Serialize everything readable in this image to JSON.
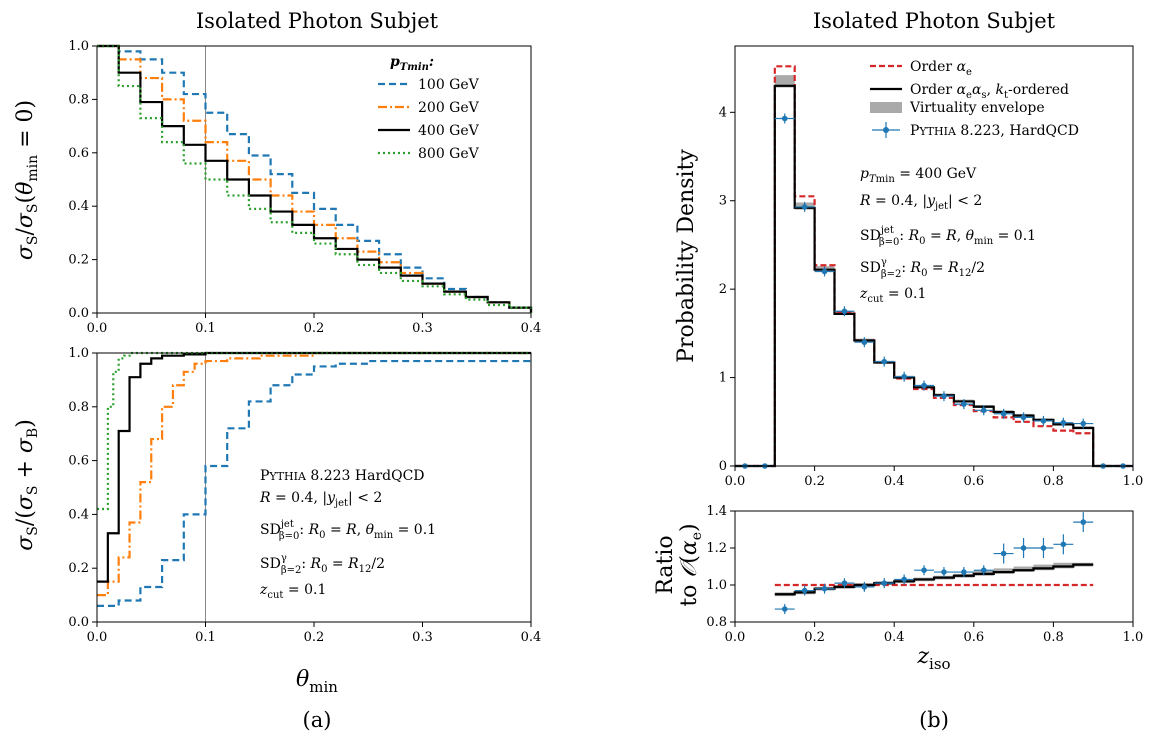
{
  "chart_data": [
    {
      "id": "a_top",
      "type": "line",
      "title": "Isolated Photon Subjet",
      "xlabel": "",
      "ylabel": "σS/σS(θmin = 0)",
      "xlim": [
        0,
        0.4
      ],
      "ylim": [
        0,
        1.0
      ],
      "xticks": [
        "0.0",
        "0.1",
        "0.2",
        "0.3",
        "0.4"
      ],
      "yticks": [
        "0.0",
        "0.2",
        "0.4",
        "0.6",
        "0.8",
        "1.0"
      ],
      "vline": 0.1,
      "legend_title": "pTmin:",
      "legend_position": "top-right",
      "series": [
        {
          "name": "100 GeV",
          "color": "#1f77b4",
          "dash": "dashed",
          "x": [
            0,
            0.02,
            0.04,
            0.06,
            0.08,
            0.1,
            0.12,
            0.14,
            0.16,
            0.18,
            0.2,
            0.22,
            0.24,
            0.26,
            0.28,
            0.3,
            0.32,
            0.34,
            0.36,
            0.38,
            0.4
          ],
          "y": [
            1.0,
            0.98,
            0.95,
            0.9,
            0.82,
            0.75,
            0.67,
            0.59,
            0.52,
            0.45,
            0.39,
            0.33,
            0.27,
            0.22,
            0.17,
            0.13,
            0.09,
            0.06,
            0.04,
            0.02,
            0.0
          ]
        },
        {
          "name": "200 GeV",
          "color": "#ff7f0e",
          "dash": "dashdot",
          "x": [
            0,
            0.02,
            0.04,
            0.06,
            0.08,
            0.1,
            0.12,
            0.14,
            0.16,
            0.18,
            0.2,
            0.22,
            0.24,
            0.26,
            0.28,
            0.3,
            0.32,
            0.34,
            0.36,
            0.38,
            0.4
          ],
          "y": [
            1.0,
            0.95,
            0.88,
            0.8,
            0.72,
            0.64,
            0.57,
            0.5,
            0.44,
            0.38,
            0.33,
            0.28,
            0.23,
            0.19,
            0.15,
            0.11,
            0.08,
            0.06,
            0.04,
            0.02,
            0.0
          ]
        },
        {
          "name": "400 GeV",
          "color": "#000000",
          "dash": "solid",
          "x": [
            0,
            0.02,
            0.04,
            0.06,
            0.08,
            0.1,
            0.12,
            0.14,
            0.16,
            0.18,
            0.2,
            0.22,
            0.24,
            0.26,
            0.28,
            0.3,
            0.32,
            0.34,
            0.36,
            0.38,
            0.4
          ],
          "y": [
            1.0,
            0.9,
            0.79,
            0.7,
            0.63,
            0.57,
            0.5,
            0.44,
            0.38,
            0.33,
            0.28,
            0.24,
            0.2,
            0.17,
            0.14,
            0.11,
            0.08,
            0.06,
            0.04,
            0.02,
            0.0
          ]
        },
        {
          "name": "800 GeV",
          "color": "#2ca02c",
          "dash": "dotted",
          "x": [
            0,
            0.02,
            0.04,
            0.06,
            0.08,
            0.1,
            0.12,
            0.14,
            0.16,
            0.18,
            0.2,
            0.22,
            0.24,
            0.26,
            0.28,
            0.3,
            0.32,
            0.34,
            0.36,
            0.38,
            0.4
          ],
          "y": [
            1.0,
            0.85,
            0.73,
            0.64,
            0.56,
            0.5,
            0.44,
            0.39,
            0.34,
            0.3,
            0.26,
            0.22,
            0.18,
            0.15,
            0.12,
            0.1,
            0.07,
            0.05,
            0.03,
            0.02,
            0.0
          ]
        }
      ]
    },
    {
      "id": "a_bottom",
      "type": "line",
      "xlabel": "θmin",
      "ylabel": "σS/(σS + σB)",
      "xlim": [
        0,
        0.4
      ],
      "ylim": [
        0,
        1.0
      ],
      "xticks": [
        "0.0",
        "0.1",
        "0.2",
        "0.3",
        "0.4"
      ],
      "yticks": [
        "0.0",
        "0.2",
        "0.4",
        "0.6",
        "0.8",
        "1.0"
      ],
      "vline": 0.1,
      "annotations": [
        "PYTHIA 8.223 HardQCD",
        "R = 0.4, |yjet| < 2",
        "SD(jet, β=0): R0 = R, θmin = 0.1",
        "SD(γ, β=2): R0 = R12/2",
        "zcut = 0.1"
      ],
      "series": [
        {
          "name": "100 GeV",
          "color": "#1f77b4",
          "dash": "dashed",
          "x": [
            0,
            0.02,
            0.04,
            0.06,
            0.08,
            0.1,
            0.12,
            0.14,
            0.16,
            0.18,
            0.2,
            0.22,
            0.25,
            0.3,
            0.35,
            0.4
          ],
          "y": [
            0.06,
            0.08,
            0.13,
            0.23,
            0.4,
            0.58,
            0.72,
            0.82,
            0.88,
            0.92,
            0.95,
            0.96,
            0.97,
            0.97,
            0.97,
            0.98
          ]
        },
        {
          "name": "200 GeV",
          "color": "#ff7f0e",
          "dash": "dashdot",
          "x": [
            0,
            0.01,
            0.02,
            0.03,
            0.04,
            0.05,
            0.06,
            0.07,
            0.08,
            0.09,
            0.1,
            0.12,
            0.15,
            0.2,
            0.3,
            0.4
          ],
          "y": [
            0.1,
            0.15,
            0.24,
            0.37,
            0.52,
            0.68,
            0.8,
            0.88,
            0.93,
            0.96,
            0.97,
            0.98,
            0.99,
            1.0,
            1.0,
            1.0
          ]
        },
        {
          "name": "400 GeV",
          "color": "#000000",
          "dash": "solid",
          "x": [
            0,
            0.01,
            0.02,
            0.03,
            0.04,
            0.05,
            0.06,
            0.08,
            0.1,
            0.15,
            0.2,
            0.3,
            0.4
          ],
          "y": [
            0.15,
            0.33,
            0.71,
            0.91,
            0.96,
            0.98,
            0.99,
            0.995,
            1.0,
            1.0,
            1.0,
            1.0,
            1.0
          ]
        },
        {
          "name": "800 GeV",
          "color": "#2ca02c",
          "dash": "dotted",
          "x": [
            0,
            0.01,
            0.015,
            0.02,
            0.025,
            0.03,
            0.04,
            0.06,
            0.1,
            0.2,
            0.4
          ],
          "y": [
            0.42,
            0.8,
            0.93,
            0.98,
            0.99,
            1.0,
            1.0,
            1.0,
            1.0,
            1.0,
            1.0
          ]
        }
      ]
    },
    {
      "id": "b_top",
      "type": "line",
      "title": "Isolated Photon Subjet",
      "xlabel": "",
      "ylabel": "Probability Density",
      "xlim": [
        0,
        1.0
      ],
      "ylim": [
        0,
        4.75
      ],
      "xticks": [
        "0.0",
        "0.2",
        "0.4",
        "0.6",
        "0.8",
        "1.0"
      ],
      "yticks": [
        "0",
        "1",
        "2",
        "3",
        "4"
      ],
      "legend_position": "top-right",
      "annotations": [
        "pTmin = 400 GeV",
        "R = 0.4, |yjet| < 2",
        "SD(jet, β=0): R0 = R, θmin = 0.1",
        "SD(γ, β=2): R0 = R12/2",
        "zcut = 0.1"
      ],
      "bin_edges": [
        0.0,
        0.05,
        0.1,
        0.15,
        0.2,
        0.25,
        0.3,
        0.35,
        0.4,
        0.45,
        0.5,
        0.55,
        0.6,
        0.65,
        0.7,
        0.75,
        0.8,
        0.85,
        0.9,
        0.95,
        1.0
      ],
      "series": [
        {
          "name": "Order αe",
          "color": "#d62728",
          "dash": "dashed",
          "values": [
            0,
            0,
            4.52,
            3.05,
            2.27,
            1.74,
            1.42,
            1.17,
            0.99,
            0.87,
            0.77,
            0.69,
            0.62,
            0.55,
            0.5,
            0.45,
            0.4,
            0.37,
            0,
            0
          ]
        },
        {
          "name": "Order αeαs, kt-ordered",
          "color": "#000000",
          "dash": "solid",
          "values": [
            0,
            0,
            4.3,
            2.92,
            2.22,
            1.72,
            1.42,
            1.17,
            1.0,
            0.89,
            0.8,
            0.73,
            0.67,
            0.61,
            0.57,
            0.52,
            0.47,
            0.43,
            0,
            0
          ]
        },
        {
          "name": "Virtuality envelope",
          "color": "#aaaaaa",
          "lo": [
            0,
            0,
            4.28,
            2.9,
            2.21,
            1.71,
            1.41,
            1.16,
            0.99,
            0.88,
            0.79,
            0.72,
            0.66,
            0.6,
            0.56,
            0.51,
            0.46,
            0.42,
            0,
            0
          ],
          "hi": [
            0,
            0,
            4.42,
            2.98,
            2.26,
            1.74,
            1.44,
            1.19,
            1.02,
            0.9,
            0.82,
            0.75,
            0.69,
            0.63,
            0.59,
            0.54,
            0.49,
            0.45,
            0,
            0
          ]
        },
        {
          "name": "PYTHIA 8.223, HardQCD",
          "color": "#1f77b4",
          "x": [
            0.025,
            0.075,
            0.125,
            0.175,
            0.225,
            0.275,
            0.325,
            0.375,
            0.425,
            0.475,
            0.525,
            0.575,
            0.625,
            0.675,
            0.725,
            0.775,
            0.825,
            0.875,
            0.925,
            0.975
          ],
          "y": [
            0,
            0,
            3.93,
            2.93,
            2.2,
            1.75,
            1.4,
            1.18,
            1.01,
            0.91,
            0.79,
            0.7,
            0.63,
            0.59,
            0.55,
            0.51,
            0.49,
            0.48,
            0,
            0
          ]
        }
      ]
    },
    {
      "id": "b_bottom",
      "type": "line",
      "xlabel": "ziso",
      "ylabel": "Ratio to O(αe)",
      "xlim": [
        0,
        1.0
      ],
      "ylim": [
        0.8,
        1.4
      ],
      "xticks": [
        "0.0",
        "0.2",
        "0.4",
        "0.6",
        "0.8",
        "1.0"
      ],
      "yticks": [
        "0.8",
        "1.0",
        "1.2",
        "1.4"
      ],
      "bin_edges": [
        0.1,
        0.15,
        0.2,
        0.25,
        0.3,
        0.35,
        0.4,
        0.45,
        0.5,
        0.55,
        0.6,
        0.65,
        0.7,
        0.75,
        0.8,
        0.85,
        0.9
      ],
      "series": [
        {
          "name": "Order αe",
          "color": "#d62728",
          "dash": "dashed",
          "values": [
            1.0,
            1.0,
            1.0,
            1.0,
            1.0,
            1.0,
            1.0,
            1.0,
            1.0,
            1.0,
            1.0,
            1.0,
            1.0,
            1.0,
            1.0,
            1.0
          ]
        },
        {
          "name": "Order αeαs, kt-ordered",
          "color": "#000000",
          "dash": "solid",
          "values": [
            0.95,
            0.96,
            0.98,
            0.99,
            1.0,
            1.01,
            1.02,
            1.03,
            1.04,
            1.05,
            1.06,
            1.07,
            1.08,
            1.09,
            1.1,
            1.11
          ]
        },
        {
          "name": "Virtuality envelope",
          "color": "#aaaaaa",
          "lo": [
            0.94,
            0.95,
            0.97,
            0.98,
            0.99,
            1.0,
            1.01,
            1.02,
            1.03,
            1.04,
            1.05,
            1.06,
            1.07,
            1.08,
            1.09,
            1.1
          ],
          "hi": [
            0.96,
            0.97,
            0.99,
            1.0,
            1.01,
            1.02,
            1.03,
            1.04,
            1.05,
            1.06,
            1.08,
            1.09,
            1.1,
            1.11,
            1.12,
            1.12
          ]
        },
        {
          "name": "PYTHIA 8.223, HardQCD",
          "color": "#1f77b4",
          "x": [
            0.125,
            0.175,
            0.225,
            0.275,
            0.325,
            0.375,
            0.425,
            0.475,
            0.525,
            0.575,
            0.625,
            0.675,
            0.725,
            0.775,
            0.825,
            0.875
          ],
          "y": [
            0.87,
            0.97,
            0.98,
            1.01,
            0.99,
            1.01,
            1.03,
            1.08,
            1.07,
            1.07,
            1.08,
            1.17,
            1.2,
            1.2,
            1.22,
            1.34
          ]
        }
      ]
    }
  ],
  "figure": {
    "panel_a_label": "(a)",
    "panel_b_label": "(b)"
  }
}
